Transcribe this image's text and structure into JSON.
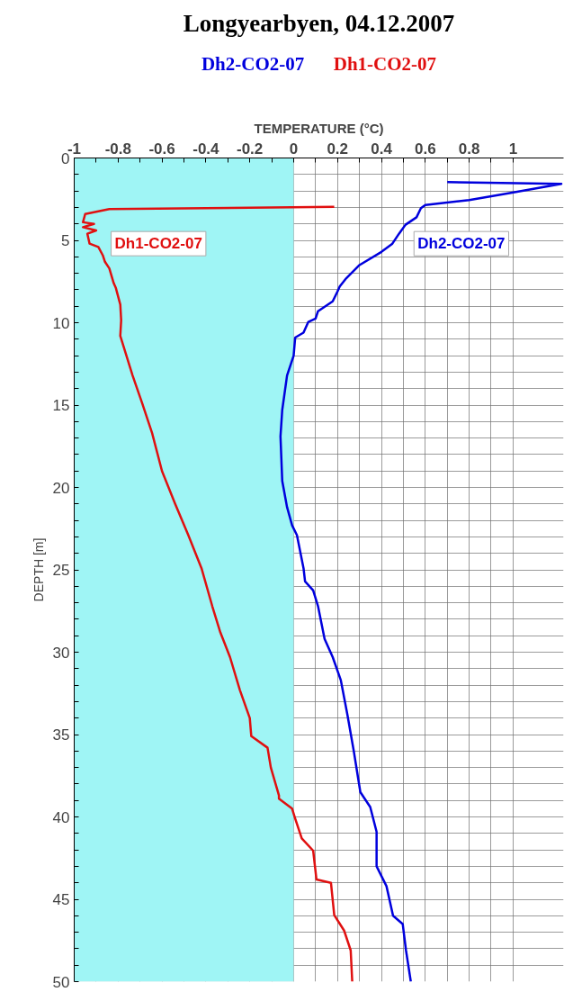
{
  "chart_data": {
    "type": "line",
    "title": "Longyearbyen, 04.12.2007",
    "xlabel": "TEMPERATURE (°C)",
    "ylabel": "DEPTH [m]",
    "xlim": [
      -1,
      1.23
    ],
    "ylim": [
      50,
      0
    ],
    "xticks": [
      -1,
      {
        "value": -0.9,
        "label": null
      },
      -0.8,
      {
        "value": -0.7,
        "label": null
      },
      -0.6,
      {
        "value": -0.5,
        "label": null
      },
      -0.4,
      {
        "value": -0.3,
        "label": null
      },
      -0.2,
      {
        "value": -0.1,
        "label": null
      },
      0,
      {
        "value": 0.1,
        "label": null
      },
      0.2,
      {
        "value": 0.3,
        "label": null
      },
      0.4,
      {
        "value": 0.5,
        "label": null
      },
      0.6,
      {
        "value": 0.7,
        "label": null
      },
      0.8,
      {
        "value": 0.9,
        "label": null
      },
      1
    ],
    "yticks": [
      0,
      {
        "value": 1,
        "label": null
      },
      {
        "value": 2,
        "label": null
      },
      {
        "value": 3,
        "label": null
      },
      {
        "value": 4,
        "label": null
      },
      5,
      {
        "value": 6,
        "label": null
      },
      {
        "value": 7,
        "label": null
      },
      {
        "value": 8,
        "label": null
      },
      {
        "value": 9,
        "label": null
      },
      10,
      {
        "value": 11,
        "label": null
      },
      {
        "value": 12,
        "label": null
      },
      {
        "value": 13,
        "label": null
      },
      {
        "value": 14,
        "label": null
      },
      15,
      {
        "value": 16,
        "label": null
      },
      {
        "value": 17,
        "label": null
      },
      {
        "value": 18,
        "label": null
      },
      {
        "value": 19,
        "label": null
      },
      20,
      {
        "value": 21,
        "label": null
      },
      {
        "value": 22,
        "label": null
      },
      {
        "value": 23,
        "label": null
      },
      {
        "value": 24,
        "label": null
      },
      25,
      {
        "value": 26,
        "label": null
      },
      {
        "value": 27,
        "label": null
      },
      {
        "value": 28,
        "label": null
      },
      {
        "value": 29,
        "label": null
      },
      30,
      {
        "value": 31,
        "label": null
      },
      {
        "value": 32,
        "label": null
      },
      {
        "value": 33,
        "label": null
      },
      {
        "value": 34,
        "label": null
      },
      35,
      {
        "value": 36,
        "label": null
      },
      {
        "value": 37,
        "label": null
      },
      {
        "value": 38,
        "label": null
      },
      {
        "value": 39,
        "label": null
      },
      40,
      {
        "value": 41,
        "label": null
      },
      {
        "value": 42,
        "label": null
      },
      {
        "value": 43,
        "label": null
      },
      {
        "value": 44,
        "label": null
      },
      45,
      {
        "value": 46,
        "label": null
      },
      {
        "value": 47,
        "label": null
      },
      {
        "value": 48,
        "label": null
      },
      {
        "value": 49,
        "label": null
      },
      50
    ],
    "grid": true,
    "legend": "top",
    "bands": [
      {
        "axis": "x",
        "from": -1,
        "to": 0,
        "color": "#9ff5f5"
      }
    ],
    "series": [
      {
        "name": "Dh2-CO2-07",
        "color": "#0000dd",
        "x": [
          0.7,
          1.22,
          0.99,
          0.8,
          0.6,
          0.58,
          0.56,
          0.51,
          0.48,
          0.45,
          0.4,
          0.3,
          0.24,
          0.21,
          0.2,
          0.178,
          0.111,
          0.1,
          0.067,
          0.045,
          0.007,
          0.0,
          -0.03,
          -0.052,
          -0.06,
          -0.052,
          -0.03,
          -0.007,
          0.015,
          0.045,
          0.052,
          0.089,
          0.111,
          0.141,
          0.178,
          0.215,
          0.245,
          0.274,
          0.304,
          0.349,
          0.378,
          0.378,
          0.423,
          0.453,
          0.497,
          0.512,
          0.534
        ],
        "values": [
          1.46,
          1.57,
          2.12,
          2.55,
          2.85,
          3.05,
          3.6,
          4.05,
          4.6,
          5.2,
          5.7,
          6.5,
          7.3,
          7.8,
          8.1,
          8.7,
          9.3,
          9.75,
          9.95,
          10.6,
          10.9,
          12.0,
          13.2,
          15.3,
          16.9,
          19.6,
          21.2,
          22.3,
          22.9,
          24.9,
          25.7,
          26.25,
          27.2,
          29.2,
          30.3,
          31.7,
          33.8,
          36.0,
          38.5,
          39.4,
          40.9,
          43.0,
          44.2,
          46.0,
          46.5,
          48.1,
          50.0
        ]
      },
      {
        "name": "Dh1-CO2-07",
        "color": "#e01010",
        "x": [
          0.185,
          -0.84,
          -0.95,
          -0.96,
          -0.91,
          -0.96,
          -0.9,
          -0.94,
          -0.93,
          -0.89,
          -0.87,
          -0.86,
          -0.84,
          -0.82,
          -0.81,
          -0.79,
          -0.786,
          -0.79,
          -0.776,
          -0.734,
          -0.69,
          -0.645,
          -0.6,
          -0.54,
          -0.48,
          -0.42,
          -0.371,
          -0.334,
          -0.29,
          -0.245,
          -0.2,
          -0.193,
          -0.119,
          -0.104,
          -0.067,
          -0.067,
          -0.007,
          0.007,
          0.037,
          0.089,
          0.104,
          0.17,
          0.185,
          0.23,
          0.26,
          0.267
        ],
        "values": [
          2.97,
          3.1,
          3.4,
          3.9,
          4.0,
          4.2,
          4.4,
          4.6,
          5.2,
          5.4,
          5.9,
          6.3,
          6.7,
          7.6,
          7.9,
          8.9,
          9.85,
          10.8,
          11.4,
          13.2,
          14.9,
          16.7,
          19.0,
          21.0,
          22.9,
          24.9,
          27.2,
          28.8,
          30.3,
          32.3,
          34.0,
          35.1,
          35.8,
          37.0,
          38.7,
          38.9,
          39.5,
          40.1,
          41.3,
          42.05,
          43.8,
          44.0,
          45.96,
          46.9,
          48.1,
          50.0
        ]
      }
    ]
  }
}
